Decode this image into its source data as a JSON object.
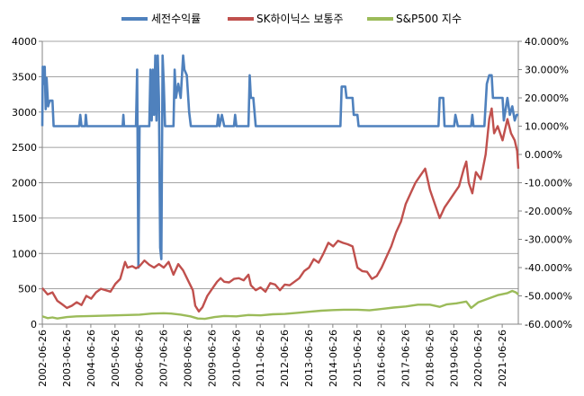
{
  "chart_data": {
    "type": "line",
    "title": "",
    "legend_position": "top",
    "grid": true,
    "x": [
      "2002-06-26",
      "2003-06-26",
      "2004-06-26",
      "2005-06-26",
      "2006-06-26",
      "2007-06-26",
      "2008-06-26",
      "2009-06-26",
      "2010-06-26",
      "2011-06-26",
      "2012-06-26",
      "2013-06-26",
      "2014-06-26",
      "2015-06-26",
      "2016-06-26",
      "2017-06-26",
      "2018-06-26",
      "2019-06-26",
      "2020-06-26",
      "2021-06-26"
    ],
    "x_range": [
      2002.48,
      2022.15
    ],
    "left_axis": {
      "ylim": [
        0,
        4000
      ],
      "ticks": [
        "0",
        "500",
        "1000",
        "1500",
        "2000",
        "2500",
        "3000",
        "3500",
        "4000"
      ]
    },
    "right_axis": {
      "ylim": [
        -60,
        40
      ],
      "ticks": [
        "40.000%",
        "30.000%",
        "20.000%",
        "10.000%",
        "0.000%",
        "-10.000%",
        "-20.000%",
        "-30.000%",
        "-40.000%",
        "-50.000%",
        "-60.000%"
      ]
    },
    "series": [
      {
        "name": "세전수익률",
        "axis": "right",
        "color": "#4F81BD",
        "points": [
          [
            2002.48,
            10
          ],
          [
            2002.5,
            31
          ],
          [
            2002.55,
            25
          ],
          [
            2002.58,
            31
          ],
          [
            2002.62,
            16
          ],
          [
            2002.66,
            27
          ],
          [
            2002.72,
            17
          ],
          [
            2002.75,
            18
          ],
          [
            2002.8,
            19
          ],
          [
            2002.9,
            19
          ],
          [
            2002.95,
            10
          ],
          [
            2004.0,
            10
          ],
          [
            2004.05,
            14
          ],
          [
            2004.1,
            10
          ],
          [
            2004.25,
            10
          ],
          [
            2004.28,
            14
          ],
          [
            2004.32,
            10
          ],
          [
            2005.8,
            10
          ],
          [
            2005.83,
            14
          ],
          [
            2005.86,
            10
          ],
          [
            2006.35,
            10
          ],
          [
            2006.4,
            30
          ],
          [
            2006.45,
            -40
          ],
          [
            2006.5,
            10
          ],
          [
            2006.9,
            10
          ],
          [
            2006.95,
            30
          ],
          [
            2007.0,
            12
          ],
          [
            2007.05,
            30
          ],
          [
            2007.1,
            14
          ],
          [
            2007.15,
            35
          ],
          [
            2007.2,
            12
          ],
          [
            2007.25,
            35
          ],
          [
            2007.3,
            20
          ],
          [
            2007.35,
            -33
          ],
          [
            2007.4,
            -37
          ],
          [
            2007.45,
            35
          ],
          [
            2007.5,
            25
          ],
          [
            2007.55,
            10
          ],
          [
            2007.9,
            10
          ],
          [
            2007.95,
            30
          ],
          [
            2008.0,
            20
          ],
          [
            2008.1,
            25
          ],
          [
            2008.2,
            20
          ],
          [
            2008.3,
            35
          ],
          [
            2008.35,
            30
          ],
          [
            2008.45,
            28
          ],
          [
            2008.55,
            15
          ],
          [
            2008.62,
            10
          ],
          [
            2009.7,
            10
          ],
          [
            2009.75,
            14
          ],
          [
            2009.8,
            10
          ],
          [
            2009.9,
            14
          ],
          [
            2010.0,
            10
          ],
          [
            2010.4,
            10
          ],
          [
            2010.45,
            14
          ],
          [
            2010.5,
            10
          ],
          [
            2011.0,
            10
          ],
          [
            2011.05,
            28
          ],
          [
            2011.1,
            20
          ],
          [
            2011.2,
            20
          ],
          [
            2011.3,
            10
          ],
          [
            2014.8,
            10
          ],
          [
            2014.85,
            24
          ],
          [
            2015.0,
            24
          ],
          [
            2015.05,
            20
          ],
          [
            2015.3,
            20
          ],
          [
            2015.35,
            14
          ],
          [
            2015.5,
            14
          ],
          [
            2015.55,
            10
          ],
          [
            2018.85,
            10
          ],
          [
            2018.9,
            20
          ],
          [
            2019.05,
            20
          ],
          [
            2019.1,
            10
          ],
          [
            2019.5,
            10
          ],
          [
            2019.55,
            14
          ],
          [
            2019.65,
            10
          ],
          [
            2020.2,
            10
          ],
          [
            2020.25,
            14
          ],
          [
            2020.3,
            10
          ],
          [
            2020.75,
            10
          ],
          [
            2020.85,
            25
          ],
          [
            2020.95,
            28
          ],
          [
            2021.05,
            28
          ],
          [
            2021.1,
            20
          ],
          [
            2021.5,
            20
          ],
          [
            2021.55,
            12
          ],
          [
            2021.7,
            20
          ],
          [
            2021.8,
            14
          ],
          [
            2021.9,
            17
          ],
          [
            2022.0,
            12
          ],
          [
            2022.08,
            14
          ],
          [
            2022.15,
            14
          ]
        ]
      },
      {
        "name": "SK하이닉스 보통주",
        "axis": "left",
        "color": "#C0504D",
        "points": [
          [
            2002.48,
            510
          ],
          [
            2002.7,
            420
          ],
          [
            2002.9,
            450
          ],
          [
            2003.1,
            330
          ],
          [
            2003.3,
            280
          ],
          [
            2003.5,
            230
          ],
          [
            2003.7,
            260
          ],
          [
            2003.9,
            310
          ],
          [
            2004.1,
            270
          ],
          [
            2004.3,
            400
          ],
          [
            2004.5,
            360
          ],
          [
            2004.7,
            450
          ],
          [
            2004.9,
            500
          ],
          [
            2005.1,
            480
          ],
          [
            2005.3,
            460
          ],
          [
            2005.5,
            570
          ],
          [
            2005.7,
            640
          ],
          [
            2005.9,
            880
          ],
          [
            2006.0,
            800
          ],
          [
            2006.2,
            820
          ],
          [
            2006.35,
            790
          ],
          [
            2006.5,
            820
          ],
          [
            2006.7,
            900
          ],
          [
            2006.9,
            840
          ],
          [
            2007.1,
            800
          ],
          [
            2007.3,
            850
          ],
          [
            2007.5,
            800
          ],
          [
            2007.7,
            880
          ],
          [
            2007.9,
            700
          ],
          [
            2008.1,
            850
          ],
          [
            2008.3,
            760
          ],
          [
            2008.5,
            620
          ],
          [
            2008.7,
            480
          ],
          [
            2008.8,
            260
          ],
          [
            2008.95,
            180
          ],
          [
            2009.1,
            240
          ],
          [
            2009.3,
            400
          ],
          [
            2009.5,
            500
          ],
          [
            2009.7,
            600
          ],
          [
            2009.85,
            650
          ],
          [
            2010.0,
            600
          ],
          [
            2010.2,
            590
          ],
          [
            2010.4,
            640
          ],
          [
            2010.6,
            650
          ],
          [
            2010.8,
            620
          ],
          [
            2011.0,
            700
          ],
          [
            2011.1,
            550
          ],
          [
            2011.3,
            480
          ],
          [
            2011.5,
            520
          ],
          [
            2011.7,
            460
          ],
          [
            2011.9,
            580
          ],
          [
            2012.1,
            560
          ],
          [
            2012.3,
            480
          ],
          [
            2012.5,
            560
          ],
          [
            2012.7,
            550
          ],
          [
            2012.9,
            600
          ],
          [
            2013.1,
            650
          ],
          [
            2013.3,
            750
          ],
          [
            2013.5,
            800
          ],
          [
            2013.7,
            920
          ],
          [
            2013.9,
            870
          ],
          [
            2014.1,
            1000
          ],
          [
            2014.3,
            1150
          ],
          [
            2014.5,
            1100
          ],
          [
            2014.7,
            1180
          ],
          [
            2014.9,
            1150
          ],
          [
            2015.1,
            1130
          ],
          [
            2015.3,
            1100
          ],
          [
            2015.5,
            800
          ],
          [
            2015.7,
            750
          ],
          [
            2015.9,
            740
          ],
          [
            2016.1,
            640
          ],
          [
            2016.3,
            680
          ],
          [
            2016.5,
            800
          ],
          [
            2016.7,
            950
          ],
          [
            2016.9,
            1100
          ],
          [
            2017.1,
            1300
          ],
          [
            2017.3,
            1450
          ],
          [
            2017.5,
            1700
          ],
          [
            2017.7,
            1850
          ],
          [
            2017.9,
            2000
          ],
          [
            2018.1,
            2100
          ],
          [
            2018.3,
            2200
          ],
          [
            2018.5,
            1900
          ],
          [
            2018.7,
            1700
          ],
          [
            2018.9,
            1500
          ],
          [
            2019.1,
            1650
          ],
          [
            2019.3,
            1750
          ],
          [
            2019.5,
            1850
          ],
          [
            2019.7,
            1950
          ],
          [
            2019.9,
            2200
          ],
          [
            2020.0,
            2300
          ],
          [
            2020.1,
            2000
          ],
          [
            2020.25,
            1850
          ],
          [
            2020.4,
            2150
          ],
          [
            2020.6,
            2050
          ],
          [
            2020.8,
            2400
          ],
          [
            2020.95,
            2900
          ],
          [
            2021.05,
            3050
          ],
          [
            2021.15,
            2700
          ],
          [
            2021.3,
            2800
          ],
          [
            2021.5,
            2600
          ],
          [
            2021.7,
            2900
          ],
          [
            2021.85,
            2700
          ],
          [
            2022.0,
            2600
          ],
          [
            2022.1,
            2450
          ],
          [
            2022.15,
            2200
          ]
        ]
      },
      {
        "name": "S&P500 지수",
        "axis": "left",
        "color": "#9BBB59",
        "points": [
          [
            2002.48,
            110
          ],
          [
            2002.7,
            85
          ],
          [
            2002.9,
            95
          ],
          [
            2003.1,
            80
          ],
          [
            2003.5,
            100
          ],
          [
            2003.9,
            110
          ],
          [
            2004.5,
            115
          ],
          [
            2005.0,
            120
          ],
          [
            2005.5,
            125
          ],
          [
            2006.0,
            130
          ],
          [
            2006.5,
            135
          ],
          [
            2007.0,
            150
          ],
          [
            2007.5,
            155
          ],
          [
            2007.8,
            150
          ],
          [
            2008.2,
            135
          ],
          [
            2008.6,
            110
          ],
          [
            2008.9,
            80
          ],
          [
            2009.2,
            75
          ],
          [
            2009.6,
            100
          ],
          [
            2010.0,
            115
          ],
          [
            2010.5,
            110
          ],
          [
            2011.0,
            130
          ],
          [
            2011.5,
            125
          ],
          [
            2012.0,
            140
          ],
          [
            2012.5,
            145
          ],
          [
            2013.0,
            160
          ],
          [
            2013.5,
            175
          ],
          [
            2014.0,
            190
          ],
          [
            2014.5,
            200
          ],
          [
            2015.0,
            205
          ],
          [
            2015.5,
            205
          ],
          [
            2016.0,
            195
          ],
          [
            2016.5,
            215
          ],
          [
            2017.0,
            235
          ],
          [
            2017.5,
            250
          ],
          [
            2018.0,
            275
          ],
          [
            2018.5,
            275
          ],
          [
            2018.9,
            245
          ],
          [
            2019.2,
            280
          ],
          [
            2019.6,
            295
          ],
          [
            2020.0,
            320
          ],
          [
            2020.2,
            230
          ],
          [
            2020.5,
            310
          ],
          [
            2020.9,
            360
          ],
          [
            2021.3,
            410
          ],
          [
            2021.7,
            440
          ],
          [
            2021.9,
            470
          ],
          [
            2022.05,
            450
          ],
          [
            2022.15,
            420
          ]
        ]
      }
    ]
  }
}
